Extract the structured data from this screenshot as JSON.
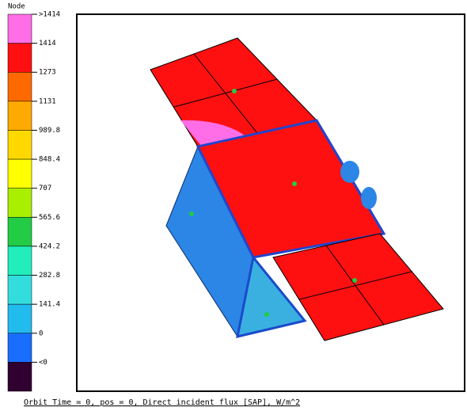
{
  "legend": {
    "title": "Node",
    "labels": [
      ">1414",
      "1414",
      "1273",
      "1131",
      "989.8",
      "848.4",
      "707",
      "565.6",
      "424.2",
      "282.8",
      "141.4",
      "0",
      "<0"
    ],
    "colors": [
      "#ff6ee6",
      "#ff1010",
      "#ff6a00",
      "#ffaa00",
      "#ffd800",
      "#ffff00",
      "#aaee00",
      "#22cc44",
      "#22eebb",
      "#33dddd",
      "#22bbee",
      "#1a6eff",
      "#300030"
    ]
  },
  "footer": "Orbit Time = 0, pos = 0, Direct incident flux [SAP], W/m^2"
}
